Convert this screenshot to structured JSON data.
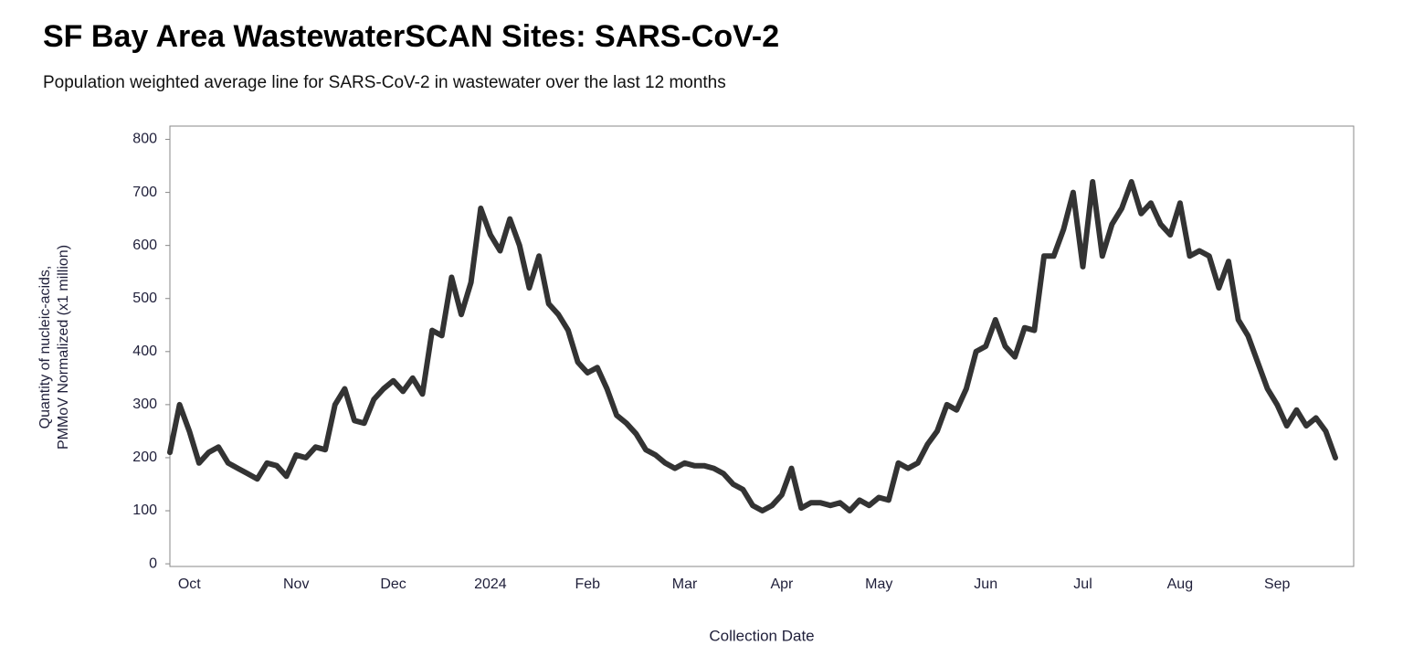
{
  "chart_data": {
    "type": "line",
    "title": "SF Bay Area WastewaterSCAN Sites: SARS-CoV-2",
    "subtitle": "Population weighted average line for SARS-CoV-2 in wastewater over the last 12 months",
    "xlabel": "Collection Date",
    "ylabel": [
      "Quantity of nucleic-acids,",
      "PMMoV Normalized (x1 million)"
    ],
    "categories": [
      null,
      null,
      "Oct",
      null,
      null,
      null,
      null,
      null,
      null,
      null,
      null,
      null,
      null,
      "Nov",
      null,
      null,
      null,
      null,
      null,
      null,
      null,
      null,
      null,
      "Dec",
      null,
      null,
      null,
      null,
      null,
      null,
      null,
      null,
      null,
      "2024",
      null,
      null,
      null,
      null,
      null,
      null,
      null,
      null,
      null,
      "Feb",
      null,
      null,
      null,
      null,
      null,
      null,
      null,
      null,
      null,
      "Mar",
      null,
      null,
      null,
      null,
      null,
      null,
      null,
      null,
      null,
      "Apr",
      null,
      null,
      null,
      null,
      null,
      null,
      null,
      null,
      null,
      "May",
      null,
      null,
      null,
      null,
      null,
      null,
      null,
      null,
      null,
      null,
      "Jun",
      null,
      null,
      null,
      null,
      null,
      null,
      null,
      null,
      null,
      "Jul",
      null,
      null,
      null,
      null,
      null,
      null,
      null,
      null,
      null,
      "Aug",
      null,
      null,
      null,
      null,
      null,
      null,
      null,
      null,
      null,
      "Sep",
      null,
      null,
      null,
      null,
      null,
      null
    ],
    "values": [
      210,
      300,
      250,
      190,
      210,
      220,
      190,
      180,
      170,
      160,
      190,
      185,
      165,
      205,
      200,
      220,
      215,
      300,
      330,
      270,
      265,
      310,
      330,
      345,
      325,
      350,
      320,
      440,
      430,
      540,
      470,
      530,
      670,
      620,
      590,
      650,
      600,
      520,
      580,
      490,
      470,
      440,
      380,
      360,
      370,
      330,
      280,
      265,
      245,
      215,
      205,
      190,
      180,
      190,
      185,
      185,
      180,
      170,
      150,
      140,
      110,
      100,
      110,
      130,
      180,
      105,
      115,
      115,
      110,
      115,
      100,
      120,
      110,
      125,
      120,
      190,
      180,
      190,
      225,
      250,
      300,
      290,
      330,
      400,
      410,
      460,
      410,
      390,
      445,
      440,
      580,
      580,
      630,
      700,
      560,
      720,
      580,
      640,
      670,
      720,
      660,
      680,
      640,
      620,
      680,
      580,
      590,
      580,
      520,
      570,
      460,
      430,
      380,
      330,
      300,
      260,
      290,
      260,
      275,
      250,
      200
    ],
    "color": "#333333",
    "ylim": [
      -5,
      825
    ],
    "yticks": [
      0,
      100,
      200,
      300,
      400,
      500,
      600,
      700,
      800
    ]
  }
}
